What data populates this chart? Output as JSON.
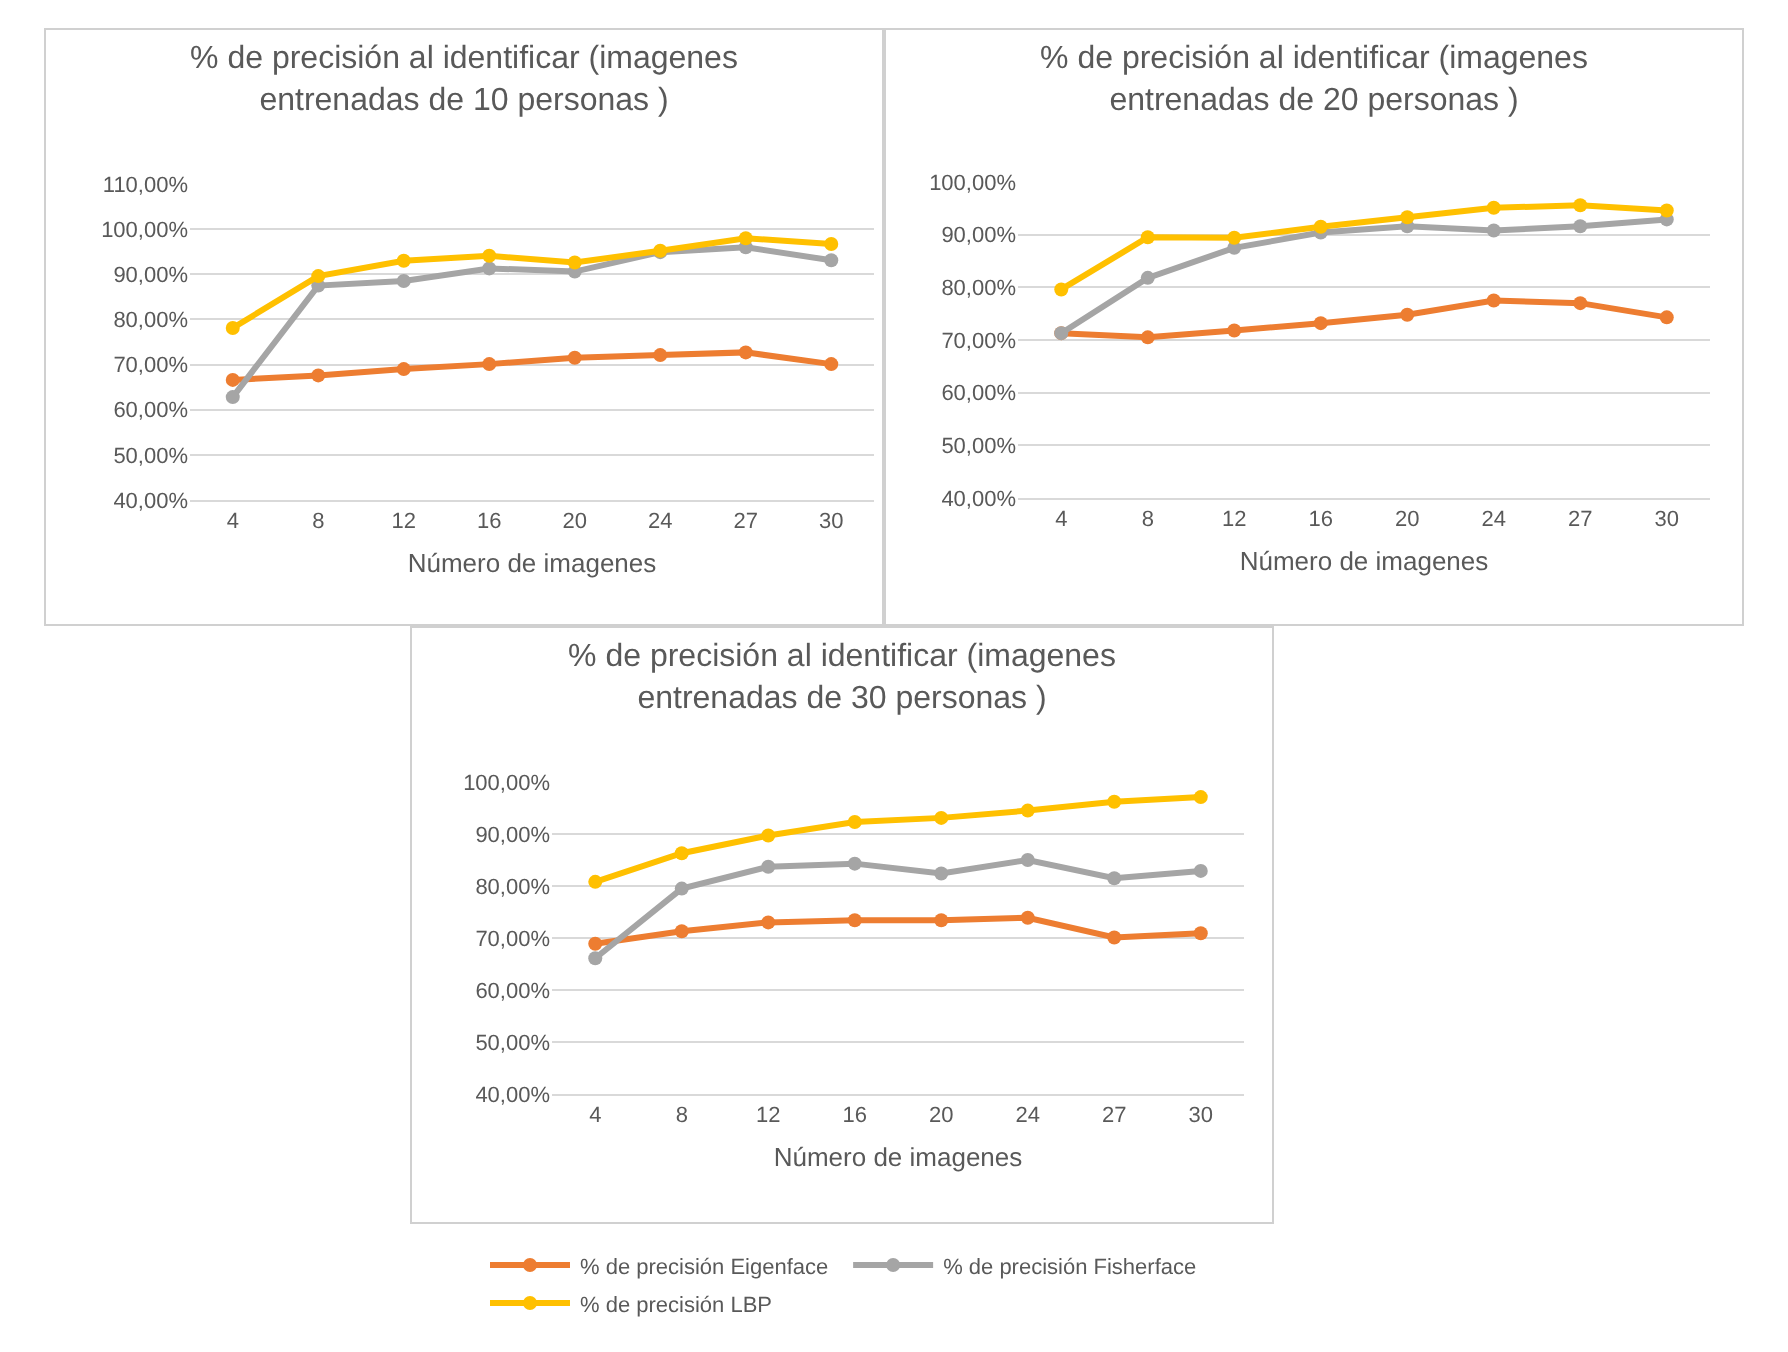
{
  "chart_data": [
    {
      "type": "line",
      "title": "% de precisión al identificar (imagenes entrenadas de 10 personas )",
      "xlabel": "Número de imagenes",
      "categories": [
        "4",
        "8",
        "12",
        "16",
        "20",
        "24",
        "27",
        "30"
      ],
      "ylim": [
        40,
        110
      ],
      "yticks": [
        {
          "value": 40,
          "label": "40,00%"
        },
        {
          "value": 50,
          "label": "50,00%"
        },
        {
          "value": 60,
          "label": "60,00%"
        },
        {
          "value": 70,
          "label": "70,00%"
        },
        {
          "value": 80,
          "label": "80,00%"
        },
        {
          "value": 90,
          "label": "90,00%"
        },
        {
          "value": 100,
          "label": "100,00%"
        },
        {
          "value": 110,
          "label": "110,00%"
        }
      ],
      "grid": "y",
      "marker": "circle",
      "line_style": "solid",
      "series": [
        {
          "color": "#ed7d31",
          "values": [
            66.6,
            67.6,
            69.0,
            70.1,
            71.5,
            72.1,
            72.7,
            70.1
          ]
        },
        {
          "color": "#a5a5a5",
          "values": [
            62.8,
            87.5,
            88.5,
            91.3,
            90.6,
            94.9,
            96.0,
            93.1
          ]
        },
        {
          "color": "#ffc000",
          "values": [
            78.1,
            89.6,
            93.0,
            94.1,
            92.6,
            95.2,
            98.0,
            96.7
          ]
        }
      ]
    },
    {
      "type": "line",
      "title": "% de precisión al identificar (imagenes entrenadas de 20 personas )",
      "xlabel": "Número de imagenes",
      "categories": [
        "4",
        "8",
        "12",
        "16",
        "20",
        "24",
        "27",
        "30"
      ],
      "ylim": [
        40,
        100
      ],
      "yticks": [
        {
          "value": 40,
          "label": "40,00%"
        },
        {
          "value": 50,
          "label": "50,00%"
        },
        {
          "value": 60,
          "label": "60,00%"
        },
        {
          "value": 70,
          "label": "70,00%"
        },
        {
          "value": 80,
          "label": "80,00%"
        },
        {
          "value": 90,
          "label": "90,00%"
        },
        {
          "value": 100,
          "label": "100,00%"
        }
      ],
      "grid": "y",
      "marker": "circle",
      "line_style": "solid",
      "series": [
        {
          "color": "#ed7d31",
          "values": [
            71.3,
            70.5,
            71.8,
            73.2,
            74.8,
            77.5,
            77.0,
            74.3
          ]
        },
        {
          "color": "#a5a5a5",
          "values": [
            71.3,
            81.8,
            87.5,
            90.4,
            91.6,
            90.8,
            91.6,
            92.9
          ]
        },
        {
          "color": "#ffc000",
          "values": [
            79.6,
            89.5,
            89.4,
            91.5,
            93.3,
            95.1,
            95.6,
            94.6
          ]
        }
      ]
    },
    {
      "type": "line",
      "title": "% de precisión al identificar (imagenes entrenadas de 30 personas )",
      "xlabel": "Número de imagenes",
      "categories": [
        "4",
        "8",
        "12",
        "16",
        "20",
        "24",
        "27",
        "30"
      ],
      "ylim": [
        40,
        100
      ],
      "yticks": [
        {
          "value": 40,
          "label": "40,00%"
        },
        {
          "value": 50,
          "label": "50,00%"
        },
        {
          "value": 60,
          "label": "60,00%"
        },
        {
          "value": 70,
          "label": "70,00%"
        },
        {
          "value": 80,
          "label": "80,00%"
        },
        {
          "value": 90,
          "label": "90,00%"
        },
        {
          "value": 100,
          "label": "100,00%"
        }
      ],
      "grid": "y",
      "marker": "circle",
      "line_style": "solid",
      "legend": "bottom",
      "series": [
        {
          "name": "% de precisión Eigenface",
          "color": "#ed7d31",
          "values": [
            68.9,
            71.3,
            73.0,
            73.4,
            73.4,
            73.9,
            70.1,
            70.9
          ]
        },
        {
          "name": "% de precisión Fisherface",
          "color": "#a5a5a5",
          "values": [
            66.1,
            79.5,
            83.7,
            84.3,
            82.4,
            85.0,
            81.5,
            82.9
          ]
        },
        {
          "name": "% de precisión LBP",
          "color": "#ffc000",
          "values": [
            80.8,
            86.3,
            89.7,
            92.3,
            93.1,
            94.5,
            96.2,
            97.1
          ]
        }
      ]
    }
  ]
}
